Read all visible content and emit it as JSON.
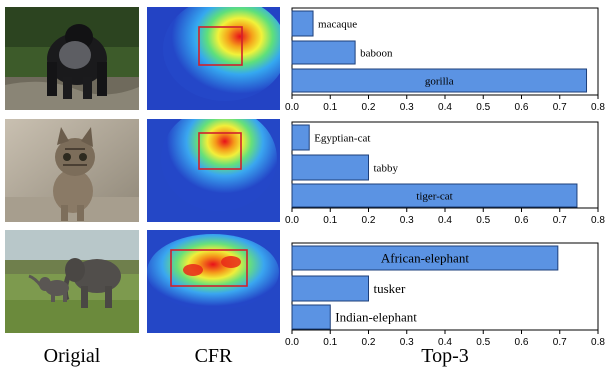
{
  "columns": {
    "original": "Origial",
    "cfr": "CFR",
    "top3": "Top-3"
  },
  "colors": {
    "bar_fill": "#5b93e3",
    "bar_stroke": "#1d3f7a"
  },
  "rows": [
    {
      "subject": "gorilla"
    },
    {
      "subject": "cat"
    },
    {
      "subject": "elephants"
    }
  ],
  "chart_data": [
    {
      "type": "bar",
      "orientation": "horizontal",
      "categories": [
        "macaque",
        "baboon",
        "gorilla"
      ],
      "values": [
        0.055,
        0.165,
        0.77
      ],
      "xlim": [
        0,
        0.8
      ],
      "xticks": [
        "0.0",
        "0.1",
        "0.2",
        "0.3",
        "0.4",
        "0.5",
        "0.6",
        "0.7",
        "0.8"
      ]
    },
    {
      "type": "bar",
      "orientation": "horizontal",
      "categories": [
        "Egyptian-cat",
        "tabby",
        "tiger-cat"
      ],
      "values": [
        0.045,
        0.2,
        0.745
      ],
      "xlim": [
        0,
        0.8
      ],
      "xticks": [
        "0.0",
        "0.1",
        "0.2",
        "0.3",
        "0.4",
        "0.5",
        "0.6",
        "0.7",
        "0.8"
      ]
    },
    {
      "type": "bar",
      "orientation": "horizontal",
      "categories": [
        "African-elephant",
        "tusker",
        "Indian-elephant"
      ],
      "values": [
        0.695,
        0.2,
        0.1
      ],
      "xlim": [
        0,
        0.8
      ],
      "xticks": [
        "0.0",
        "0.1",
        "0.2",
        "0.3",
        "0.4",
        "0.5",
        "0.6",
        "0.7",
        "0.8"
      ]
    }
  ]
}
